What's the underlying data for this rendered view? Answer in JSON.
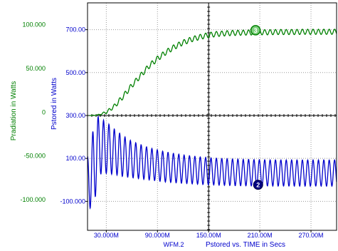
{
  "chart_data": {
    "type": "line",
    "xlabel_series": "WFM.2",
    "xlabel": "Pstored vs. TIME in Secs",
    "x_unit": "Secs",
    "xlim": [
      8,
      300
    ],
    "x_ticks": [
      30,
      90,
      150,
      210,
      270
    ],
    "x_tick_labels": [
      "30.000M",
      "90.000M",
      "150.00M",
      "210.00M",
      "270.00M"
    ],
    "grid": true,
    "axes": {
      "left_outer": {
        "label": "Pradiation in Watts",
        "color": "#008000",
        "ylim": [
          -135,
          125
        ],
        "ticks": [
          100,
          50,
          0,
          -50,
          -100
        ],
        "tick_labels": [
          "100.000",
          "50.000",
          "0",
          "-50.000",
          "-100.000"
        ]
      },
      "left_inner": {
        "label": "Pstored in Watts",
        "color": "#0000cc",
        "ylim": [
          -235,
          825
        ],
        "ticks": [
          700,
          500,
          300,
          100,
          -100
        ],
        "tick_labels": [
          "700.00",
          "500.00",
          "300.00",
          "100.00",
          "-100.000"
        ]
      }
    },
    "series": [
      {
        "axis": "left_inner",
        "color": "#008000",
        "marker": "3",
        "marker_x": 205,
        "x": [
          10,
          20,
          30,
          40,
          50,
          60,
          70,
          80,
          90,
          100,
          110,
          120,
          130,
          140,
          150,
          160,
          170,
          180,
          190,
          200,
          210,
          220,
          230,
          240,
          250,
          260,
          270,
          280,
          290,
          300
        ],
        "y": [
          300,
          302,
          315,
          345,
          390,
          440,
          485,
          530,
          565,
          595,
          620,
          640,
          655,
          666,
          675,
          680,
          683,
          685,
          686,
          687,
          688,
          688,
          689,
          689,
          689,
          690,
          690,
          690,
          690,
          690
        ],
        "ripple_amplitude": [
          0,
          2,
          6,
          10,
          12,
          12,
          12,
          12,
          12,
          12,
          12,
          12,
          12,
          12,
          12,
          12,
          12,
          12,
          12,
          12,
          12,
          12,
          12,
          12,
          12,
          12,
          12,
          12,
          12,
          12
        ],
        "ripple_period": 6.3
      },
      {
        "axis": "left_inner",
        "color": "#0000cc",
        "marker": "2",
        "marker_x": 208,
        "x": [
          8,
          15,
          20,
          30,
          40,
          50,
          60,
          80,
          100,
          120,
          150,
          180,
          210,
          240,
          270,
          300
        ],
        "center": [
          0,
          40,
          160,
          150,
          130,
          110,
          95,
          75,
          60,
          50,
          40,
          35,
          33,
          32,
          32,
          32
        ],
        "amplitude": [
          110,
          200,
          135,
          120,
          105,
          95,
          85,
          75,
          70,
          66,
          63,
          62,
          61,
          61,
          61,
          61
        ],
        "period": 6.3
      }
    ]
  }
}
